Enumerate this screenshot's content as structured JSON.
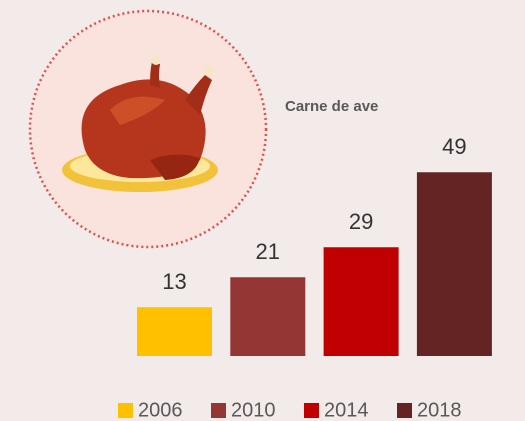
{
  "chart_data": {
    "type": "bar",
    "title": "Carne de ave",
    "series": [
      {
        "name": "2006",
        "color": "#ffc000",
        "values": [
          13
        ]
      },
      {
        "name": "2010",
        "color": "#943634",
        "values": [
          21
        ]
      },
      {
        "name": "2014",
        "color": "#c00000",
        "values": [
          29
        ]
      },
      {
        "name": "2018",
        "color": "#632423",
        "values": [
          49
        ]
      }
    ]
  }
}
